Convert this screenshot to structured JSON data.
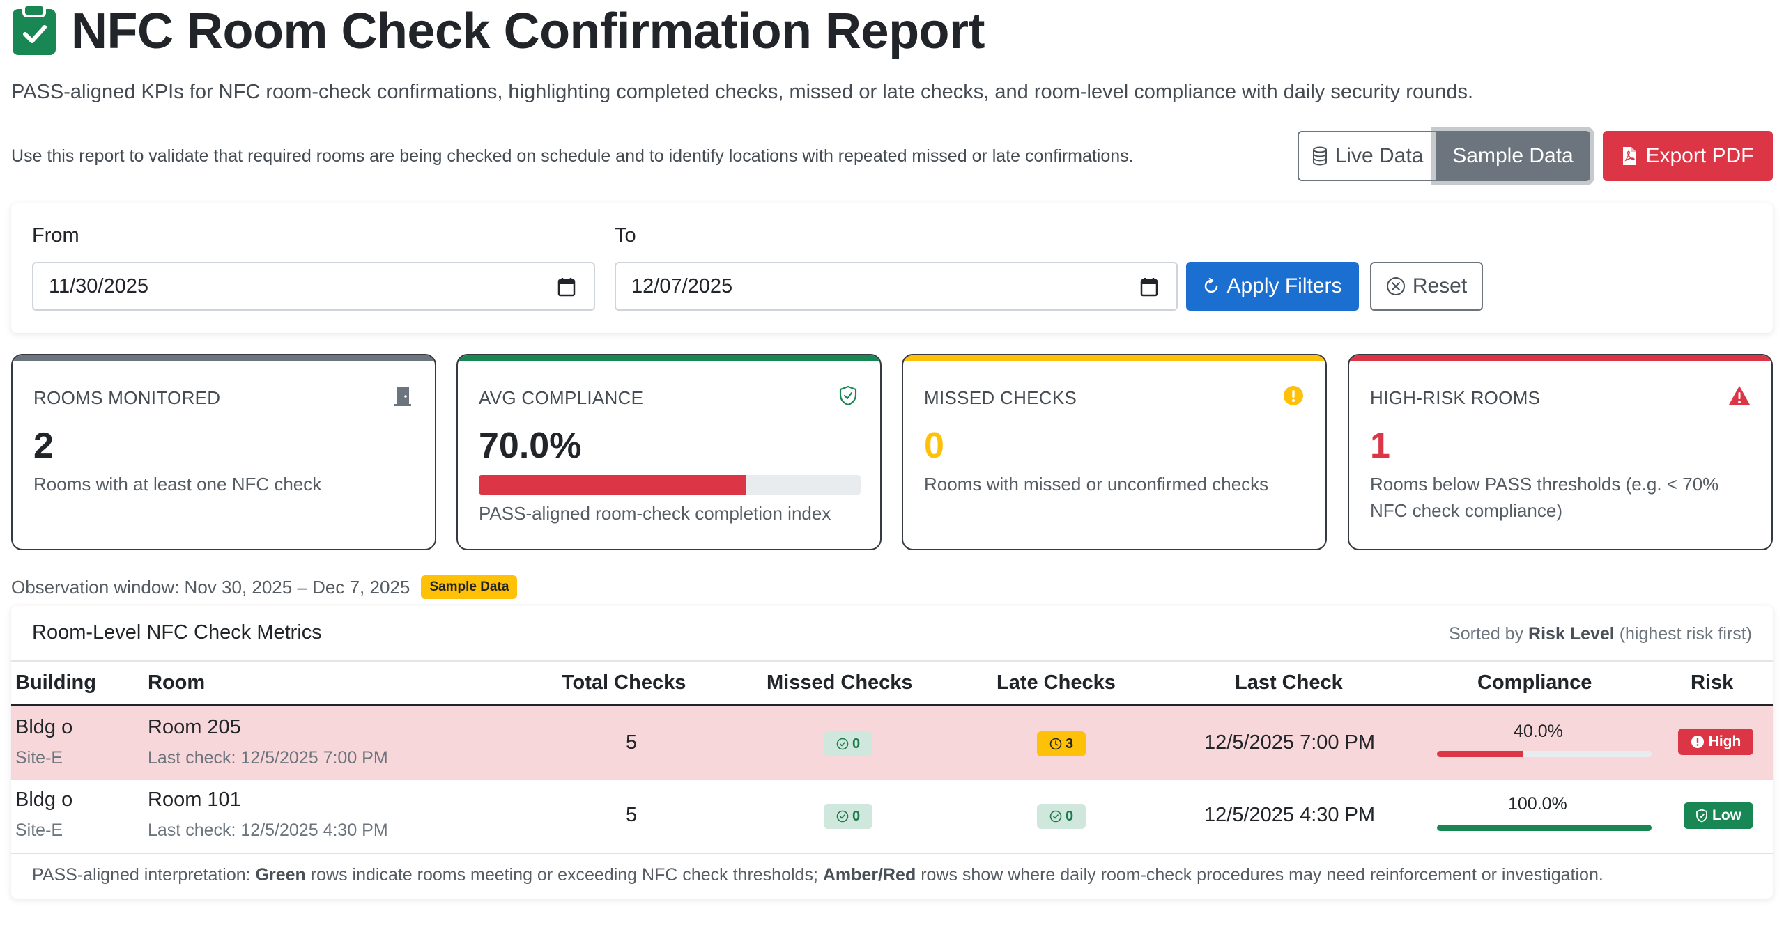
{
  "header": {
    "title": "NFC Room Check Confirmation Report",
    "subtitle": "PASS-aligned KPIs for NFC room-check confirmations, highlighting completed checks, missed or late checks, and room-level compliance with daily security rounds.",
    "description": "Use this report to validate that required rooms are being checked on schedule and to identify locations with repeated missed or late confirmations.",
    "icon": "clipboard-check-icon"
  },
  "toolbar": {
    "live_label": "Live Data",
    "sample_label": "Sample Data",
    "export_label": "Export PDF"
  },
  "filters": {
    "from_label": "From",
    "from_value": "11/30/2025",
    "to_label": "To",
    "to_value": "12/07/2025",
    "apply_label": "Apply Filters",
    "reset_label": "Reset"
  },
  "kpis": [
    {
      "label": "ROOMS MONITORED",
      "value": "2",
      "sub": "Rooms with at least one NFC check",
      "color": "#6c757d",
      "icon": "door-icon"
    },
    {
      "label": "AVG COMPLIANCE",
      "value": "70.0%",
      "sub": "PASS-aligned room-check completion index",
      "color": "#198754",
      "icon": "shield-check-icon",
      "progress": 0.7
    },
    {
      "label": "MISSED CHECKS",
      "value": "0",
      "sub": "Rooms with missed or unconfirmed checks",
      "color": "#ffc107",
      "icon": "exclamation-circle-icon"
    },
    {
      "label": "HIGH-RISK ROOMS",
      "value": "1",
      "sub": "Rooms below PASS thresholds (e.g. < 70% NFC check compliance)",
      "color": "#dc3545",
      "icon": "warning-triangle-icon"
    }
  ],
  "observation": {
    "text": "Observation window: Nov 30, 2025 – Dec 7, 2025",
    "badge": "Sample Data"
  },
  "table": {
    "title": "Room-Level NFC Check Metrics",
    "sort_prefix": "Sorted by",
    "sort_field": "Risk Level",
    "sort_suffix": "(highest risk first)",
    "columns": [
      "Building",
      "Room",
      "Total Checks",
      "Missed Checks",
      "Late Checks",
      "Last Check",
      "Compliance",
      "Risk"
    ],
    "rows": [
      {
        "building": "Bldg o",
        "site": "Site-E",
        "room": "Room 205",
        "last_check_sub": "Last check: 12/5/2025 7:00 PM",
        "total": "5",
        "missed": "0",
        "late": "3",
        "last_check": "12/5/2025 7:00 PM",
        "compliance": "40.0%",
        "compliance_value": 0.4,
        "risk": "High"
      },
      {
        "building": "Bldg o",
        "site": "Site-E",
        "room": "Room 101",
        "last_check_sub": "Last check: 12/5/2025 4:30 PM",
        "total": "5",
        "missed": "0",
        "late": "0",
        "last_check": "12/5/2025 4:30 PM",
        "compliance": "100.0%",
        "compliance_value": 1.0,
        "risk": "Low"
      }
    ],
    "footer_prefix": "PASS-aligned interpretation:",
    "footer_green": "Green",
    "footer_mid": "rows indicate rooms meeting or exceeding NFC check thresholds;",
    "footer_amber": "Amber",
    "footer_slash": "/",
    "footer_red": "Red",
    "footer_end": "rows show where daily room-check procedures may need reinforcement or investigation."
  }
}
